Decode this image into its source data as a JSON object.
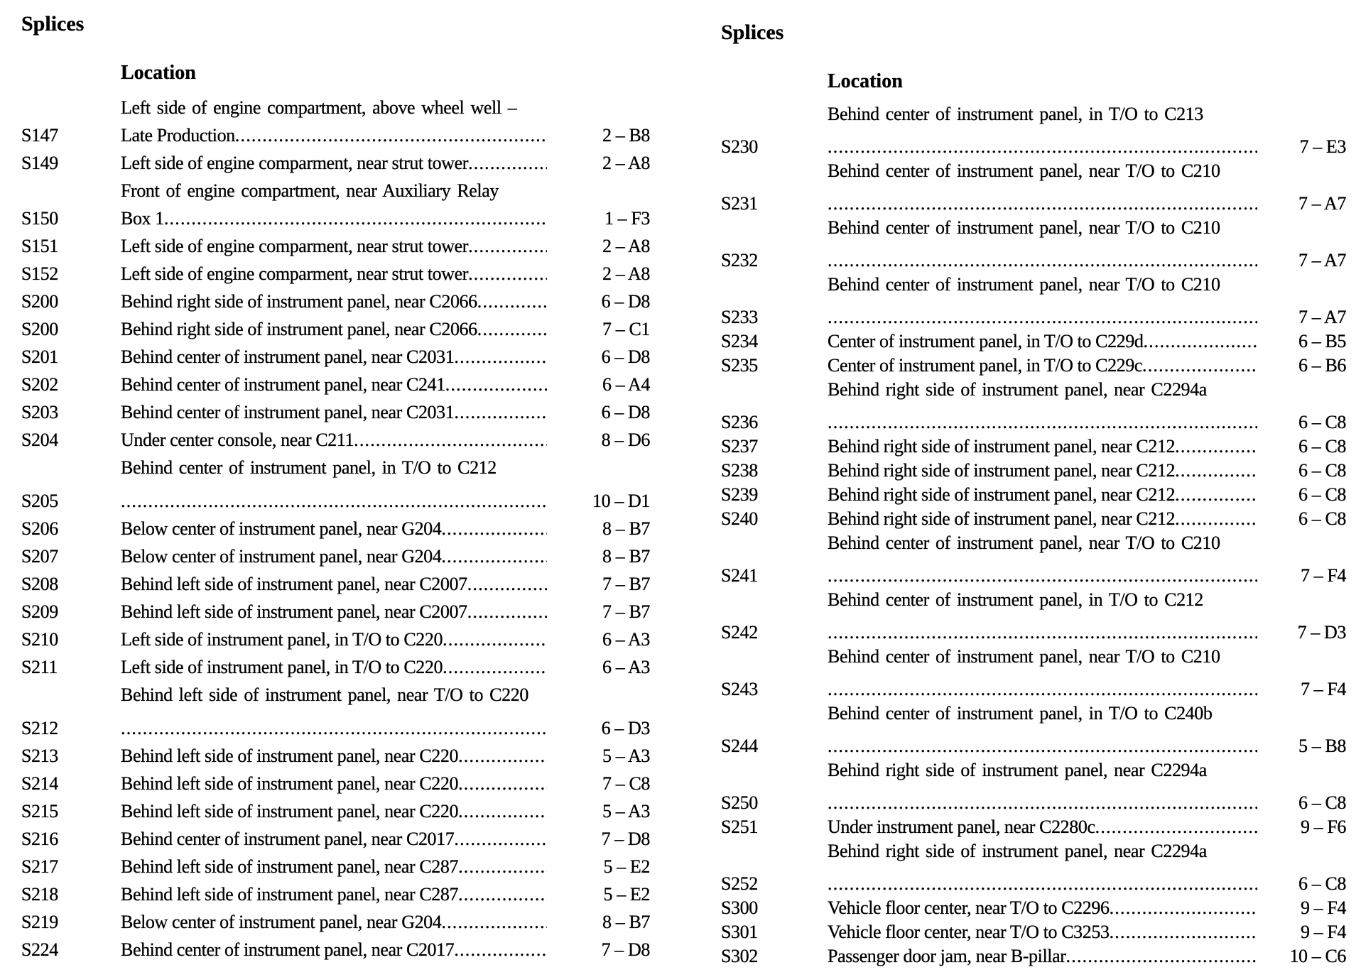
{
  "columns": [
    {
      "heading": "Splices",
      "location_header": "Location",
      "entries": [
        {
          "id": "S147",
          "lines": [
            "Left side of engine compartment, above wheel well –",
            "Late Production"
          ],
          "ref": "2 – B8"
        },
        {
          "id": "S149",
          "lines": [
            "Left side of engine comparment, near strut tower"
          ],
          "ref": "2 – A8"
        },
        {
          "id": "S150",
          "lines": [
            "Front of engine compartment, near Auxiliary Relay",
            "Box 1"
          ],
          "ref": "1 – F3"
        },
        {
          "id": "S151",
          "lines": [
            "Left side of engine comparment, near strut tower"
          ],
          "ref": "2 – A8"
        },
        {
          "id": "S152",
          "lines": [
            "Left side of engine comparment, near strut tower"
          ],
          "ref": "2 – A8"
        },
        {
          "id": "S200",
          "lines": [
            "Behind right side of instrument panel, near C2066"
          ],
          "ref": "6 – D8"
        },
        {
          "id": "S200",
          "lines": [
            "Behind right side of instrument panel, near C2066"
          ],
          "ref": "7 – C1"
        },
        {
          "id": "S201",
          "lines": [
            "Behind center of instrument panel, near C2031"
          ],
          "ref": "6 – D8"
        },
        {
          "id": "S202",
          "lines": [
            "Behind center of instrument panel, near C241"
          ],
          "ref": "6 – A4"
        },
        {
          "id": "S203",
          "lines": [
            "Behind center of instrument panel, near C2031"
          ],
          "ref": "6 – D8"
        },
        {
          "id": "S204",
          "lines": [
            "Under center console, near C211"
          ],
          "ref": "8 – D6"
        },
        {
          "id": "S205",
          "lines": [
            "Behind center of instrument panel, in T/O to C212",
            ""
          ],
          "ref": "10 – D1"
        },
        {
          "id": "S206",
          "lines": [
            "Below center of instrument panel, near G204"
          ],
          "ref": "8 – B7"
        },
        {
          "id": "S207",
          "lines": [
            "Below center of instrument panel, near G204"
          ],
          "ref": "8 – B7"
        },
        {
          "id": "S208",
          "lines": [
            "Behind left side of instrument panel, near C2007"
          ],
          "ref": "7 – B7"
        },
        {
          "id": "S209",
          "lines": [
            "Behind left side of instrument panel, near C2007"
          ],
          "ref": "7 – B7"
        },
        {
          "id": "S210",
          "lines": [
            "Left side of instrument panel, in T/O to C220"
          ],
          "ref": "6 – A3"
        },
        {
          "id": "S211",
          "lines": [
            "Left side of instrument panel, in T/O to C220"
          ],
          "ref": "6 – A3"
        },
        {
          "id": "S212",
          "lines": [
            "Behind left side of instrument panel, near T/O to C220",
            ""
          ],
          "ref": "6 – D3"
        },
        {
          "id": "S213",
          "lines": [
            "Behind left side of instrument panel, near C220"
          ],
          "ref": "5 – A3"
        },
        {
          "id": "S214",
          "lines": [
            "Behind left side of instrument panel, near C220"
          ],
          "ref": "7 – C8"
        },
        {
          "id": "S215",
          "lines": [
            "Behind left side of instrument panel, near C220"
          ],
          "ref": "5 – A3"
        },
        {
          "id": "S216",
          "lines": [
            "Behind center of instrument panel, near C2017"
          ],
          "ref": "7 – D8"
        },
        {
          "id": "S217",
          "lines": [
            "Behind left side of instrument panel, near C287"
          ],
          "ref": "5 – E2"
        },
        {
          "id": "S218",
          "lines": [
            "Behind left side of instrument panel, near C287"
          ],
          "ref": "5 – E2"
        },
        {
          "id": "S219",
          "lines": [
            "Below center of instrument panel, near G204"
          ],
          "ref": "8 – B7"
        },
        {
          "id": "S224",
          "lines": [
            "Behind center of instrument panel, near C2017"
          ],
          "ref": "7 – D8"
        }
      ]
    },
    {
      "heading": "Splices",
      "location_header": "Location",
      "entries": [
        {
          "id": "S230",
          "lines": [
            "Behind center of instrument panel, in T/O to C213",
            ""
          ],
          "ref": "7 – E3"
        },
        {
          "id": "S231",
          "lines": [
            "Behind center of instrument panel, near T/O to C210",
            ""
          ],
          "ref": "7 – A7"
        },
        {
          "id": "S232",
          "lines": [
            "Behind center of instrument panel, near T/O to C210",
            ""
          ],
          "ref": "7 – A7"
        },
        {
          "id": "S233",
          "lines": [
            "Behind center of instrument panel, near T/O to C210",
            ""
          ],
          "ref": "7 – A7"
        },
        {
          "id": "S234",
          "lines": [
            "Center of instrument panel, in T/O to C229d"
          ],
          "ref": "6 – B5"
        },
        {
          "id": "S235",
          "lines": [
            "Center of instrument panel, in T/O to C229c"
          ],
          "ref": "6 – B6"
        },
        {
          "id": "S236",
          "lines": [
            "Behind right side of instrument panel, near C2294a",
            ""
          ],
          "ref": "6 – C8"
        },
        {
          "id": "S237",
          "lines": [
            "Behind right side of instrument panel, near C212"
          ],
          "ref": "6 – C8"
        },
        {
          "id": "S238",
          "lines": [
            "Behind right side of instrument panel, near C212"
          ],
          "ref": "6 – C8"
        },
        {
          "id": "S239",
          "lines": [
            "Behind right side of instrument panel, near C212"
          ],
          "ref": "6 – C8"
        },
        {
          "id": "S240",
          "lines": [
            "Behind right side of instrument panel, near C212"
          ],
          "ref": "6 – C8"
        },
        {
          "id": "S241",
          "lines": [
            "Behind center of instrument panel, near T/O to C210",
            ""
          ],
          "ref": "7 – F4"
        },
        {
          "id": "S242",
          "lines": [
            "Behind center of instrument panel, in T/O to C212",
            ""
          ],
          "ref": "7 – D3"
        },
        {
          "id": "S243",
          "lines": [
            "Behind center of instrument panel, near T/O to C210",
            ""
          ],
          "ref": "7 – F4"
        },
        {
          "id": "S244",
          "lines": [
            "Behind center of instrument panel, in T/O to C240b",
            ""
          ],
          "ref": "5 – B8"
        },
        {
          "id": "S250",
          "lines": [
            "Behind right side of instrument panel, near C2294a",
            ""
          ],
          "ref": "6 – C8"
        },
        {
          "id": "S251",
          "lines": [
            "Under instrument panel, near C2280c"
          ],
          "ref": "9 – F6"
        },
        {
          "id": "S252",
          "lines": [
            "Behind right side of instrument panel, near C2294a",
            ""
          ],
          "ref": "6 – C8"
        },
        {
          "id": "S300",
          "lines": [
            "Vehicle floor center, near T/O to C2296"
          ],
          "ref": "9 – F4"
        },
        {
          "id": "S301",
          "lines": [
            "Vehicle floor center, near T/O to C3253"
          ],
          "ref": "9 – F4"
        },
        {
          "id": "S302",
          "lines": [
            "Passenger door jam, near B-pillar"
          ],
          "ref": "10 – C6"
        }
      ]
    }
  ]
}
